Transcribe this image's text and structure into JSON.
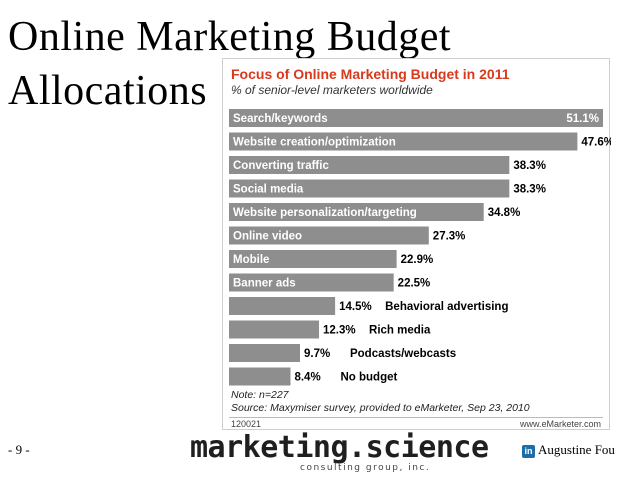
{
  "slide": {
    "title_line1": "Online Marketing Budget",
    "title_line2": "Allocations",
    "page_number": "- 9 -",
    "logo_main": "marketing.science",
    "logo_sub": "consulting group, inc.",
    "author": "Augustine Fou",
    "linkedin_icon_label": "in"
  },
  "colors": {
    "bar": "#8e8e8e",
    "chart_title": "#d9391c",
    "text": "#000000"
  },
  "chart_data": {
    "type": "bar",
    "orientation": "horizontal",
    "title": "Focus of Online Marketing Budget in 2011",
    "subtitle": "% of senior-level marketers worldwide",
    "categories": [
      "Search/keywords",
      "Website creation/optimization",
      "Converting traffic",
      "Social media",
      "Website personalization/targeting",
      "Online video",
      "Mobile",
      "Banner ads",
      "Behavioral advertising",
      "Rich media",
      "Podcasts/webcasts",
      "No budget"
    ],
    "values": [
      51.1,
      47.6,
      38.3,
      38.3,
      34.8,
      27.3,
      22.9,
      22.5,
      14.5,
      12.3,
      9.7,
      8.4
    ],
    "value_labels": [
      "51.1%",
      "47.6%",
      "38.3%",
      "38.3%",
      "34.8%",
      "27.3%",
      "22.9%",
      "22.5%",
      "14.5%",
      "12.3%",
      "9.7%",
      "8.4%"
    ],
    "xlim": [
      0,
      51.1
    ],
    "note": "Note: n=227",
    "source": "Source: Maxymiser survey, provided to eMarketer, Sep 23, 2010",
    "code": "120021",
    "site": "www.eMarketer.com",
    "legend": "none",
    "grid": false
  }
}
